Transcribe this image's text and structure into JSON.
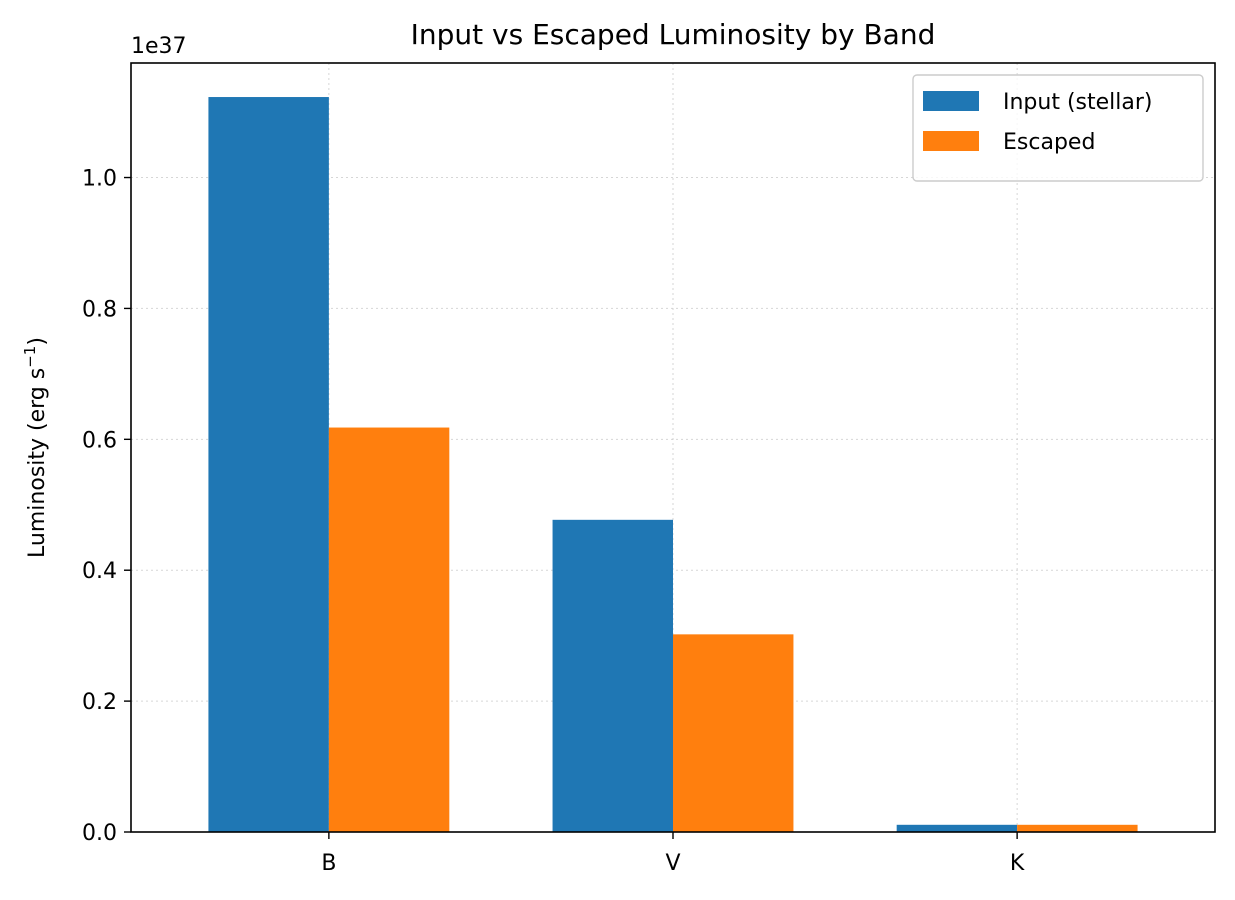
{
  "chart_data": {
    "type": "bar",
    "title": "Input vs Escaped Luminosity by Band",
    "xlabel": "",
    "ylabel": "Luminosity (erg s",
    "ylabel_sup": "−1",
    "ylabel_close": ")",
    "y_offset_label": "1e37",
    "y_scale": 1e+37,
    "categories": [
      "B",
      "V",
      "K"
    ],
    "series": [
      {
        "name": "Input (stellar)",
        "color": "#1f77b4",
        "values": [
          1.123e+37,
          4.77e+36,
          1.1e+35
        ]
      },
      {
        "name": "Escaped",
        "color": "#ff7f0e",
        "values": [
          6.18e+36,
          3.02e+36,
          1.1e+35
        ]
      }
    ],
    "ylim": [
      0,
      1.175e+37
    ],
    "y_ticks": [
      0.0,
      0.2,
      0.4,
      0.6,
      0.8,
      1.0
    ],
    "y_tick_labels": [
      "0.0",
      "0.2",
      "0.4",
      "0.6",
      "0.8",
      "1.0"
    ],
    "grid": true,
    "legend_position": "top-right"
  }
}
